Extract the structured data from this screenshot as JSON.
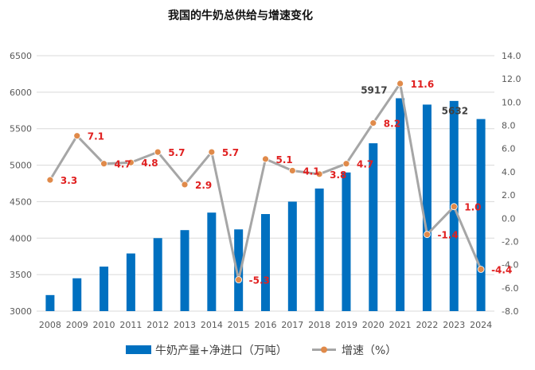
{
  "chart_data": {
    "type": "bar",
    "title": "我国的牛奶总供给与增速变化",
    "categories": [
      "2008",
      "2009",
      "2010",
      "2011",
      "2012",
      "2013",
      "2014",
      "2015",
      "2016",
      "2017",
      "2018",
      "2019",
      "2020",
      "2021",
      "2022",
      "2023",
      "2024"
    ],
    "series": [
      {
        "name": "牛奶产量+净进口（万吨）",
        "type": "bar",
        "axis": "left",
        "color": "#0070c0",
        "values": [
          3220,
          3450,
          3610,
          3790,
          4000,
          4110,
          4350,
          4120,
          4330,
          4500,
          4680,
          4900,
          5300,
          5917,
          5830,
          5880,
          5632
        ],
        "data_labels": [
          "",
          "",
          "",
          "",
          "",
          "",
          "",
          "",
          "",
          "",
          "",
          "",
          "",
          "5917",
          "",
          "",
          "5632"
        ]
      },
      {
        "name": "增速（%）",
        "type": "line",
        "axis": "right",
        "line_color": "#a6a6a6",
        "marker_color": "#e08a4a",
        "values": [
          3.3,
          7.1,
          4.7,
          4.8,
          5.7,
          2.9,
          5.7,
          -5.3,
          5.1,
          4.1,
          3.8,
          4.7,
          8.2,
          11.6,
          -1.4,
          1.0,
          -4.4
        ],
        "data_labels": [
          "3.3",
          "7.1",
          "4.7",
          "4.8",
          "5.7",
          "2.9",
          "5.7",
          "-5.3",
          "5.1",
          "4.1",
          "3.8",
          "4.7",
          "8.2",
          "11.6",
          "-1.4",
          "1.0",
          "-4.4"
        ]
      }
    ],
    "y_left": {
      "min": 3000,
      "max": 6500,
      "step": 500,
      "tick_labels": [
        "3000",
        "3500",
        "4000",
        "4500",
        "5000",
        "5500",
        "6000",
        "6500"
      ]
    },
    "y_right": {
      "min": -8,
      "max": 14,
      "step": 2,
      "tick_labels": [
        "-8.0",
        "-6.0",
        "-4.0",
        "-2.0",
        "0.0",
        "2.0",
        "4.0",
        "6.0",
        "8.0",
        "10.0",
        "12.0",
        "14.0"
      ]
    },
    "grid": true,
    "legend_position": "bottom"
  }
}
